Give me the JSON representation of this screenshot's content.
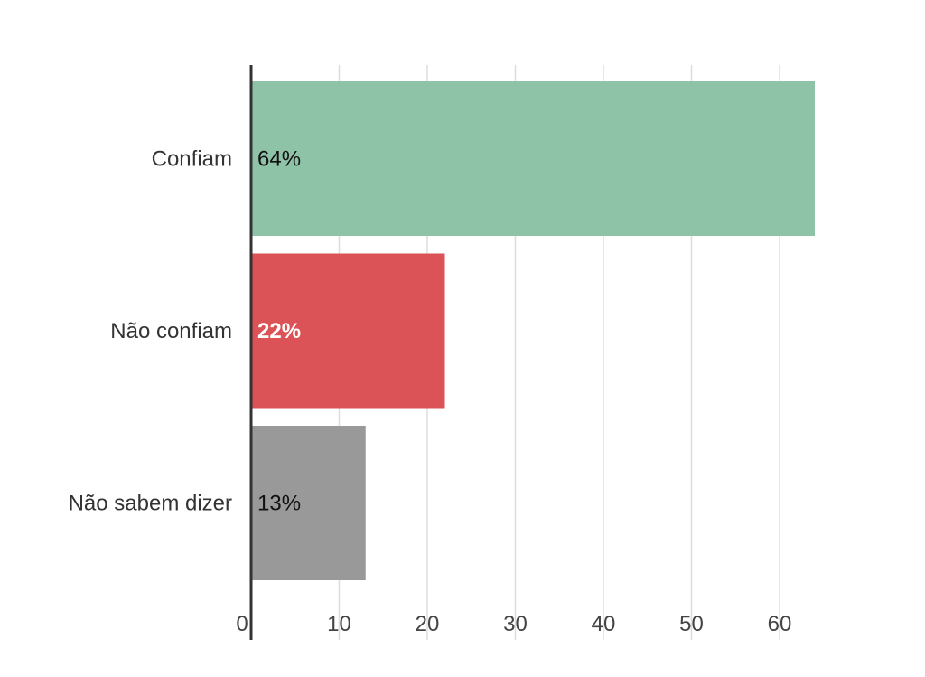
{
  "chart_data": {
    "type": "bar",
    "orientation": "horizontal",
    "categories": [
      "Confiam",
      "Não confiam",
      "Não sabem dizer"
    ],
    "values": [
      64,
      22,
      13
    ],
    "data_labels": [
      "64%",
      "22%",
      "13%"
    ],
    "colors": [
      "#8fc3a8",
      "#db5356",
      "#999999"
    ],
    "data_label_colors": [
      "#111111",
      "#ffffff",
      "#111111"
    ],
    "x_ticks": [
      0,
      10,
      20,
      30,
      40,
      50,
      60
    ],
    "xlim": [
      0,
      64
    ],
    "grid": true,
    "legend": "none",
    "axis_color": "#333333",
    "grid_color": "#dddddd"
  }
}
